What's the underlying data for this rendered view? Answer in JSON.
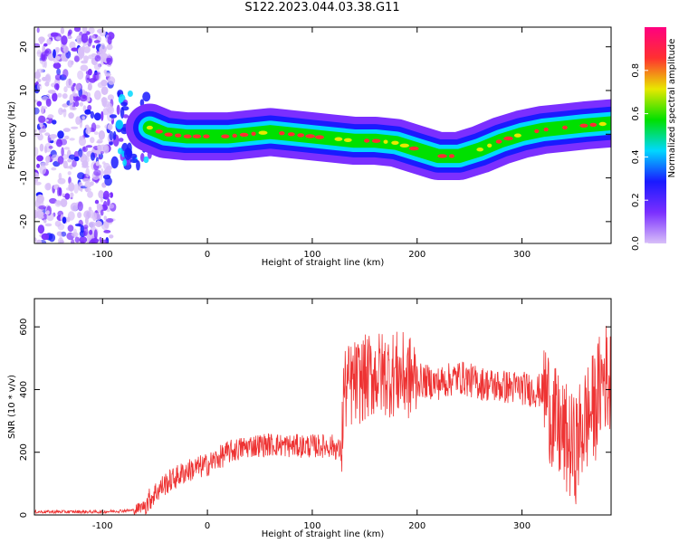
{
  "figure": {
    "title": "S122.2023.044.03.38.G11"
  },
  "chart_data": [
    {
      "type": "heatmap",
      "id": "spectrogram",
      "xlabel": "Height of straight line (km)",
      "ylabel": "Frequency (Hz)",
      "xlim": [
        -165,
        385
      ],
      "ylim": [
        -25,
        24.5
      ],
      "xticks": [
        -100,
        0,
        100,
        200,
        300
      ],
      "yticks": [
        -20,
        -10,
        0,
        10,
        20
      ],
      "grid": false,
      "colormap": [
        "#d8bff8",
        "#7b2fff",
        "#1a1aff",
        "#00d8ff",
        "#00e000",
        "#e8e800",
        "#ff3030",
        "#ff0080"
      ],
      "colorbar": {
        "label": "Normalized spectral amplitude",
        "range": [
          0,
          1
        ],
        "ticks": [
          "0.0",
          "0.2",
          "0.4",
          "0.6",
          "0.8"
        ]
      },
      "ridge": {
        "x": [
          -55,
          -40,
          -20,
          0,
          20,
          40,
          60,
          80,
          100,
          120,
          140,
          160,
          180,
          200,
          220,
          240,
          260,
          280,
          300,
          320,
          340,
          360,
          385
        ],
        "freq_hz": [
          1.5,
          0,
          -0.5,
          -0.5,
          -0.5,
          0,
          0.5,
          0,
          -0.5,
          -1,
          -1.5,
          -1.5,
          -2,
          -3.5,
          -5,
          -5,
          -3.5,
          -1.5,
          0,
          1,
          1.5,
          2,
          2.5
        ]
      },
      "noise_region": {
        "x_range": [
          -165,
          -90
        ],
        "freq_range": [
          -25,
          24.5
        ]
      }
    },
    {
      "type": "line",
      "id": "snr",
      "xlabel": "Height of straight line (km)",
      "ylabel": "SNR (10 * v/v)",
      "xlim": [
        -165,
        385
      ],
      "ylim": [
        0,
        690
      ],
      "xticks": [
        -100,
        0,
        100,
        200,
        300
      ],
      "yticks": [
        0,
        200,
        400,
        600
      ],
      "grid": false,
      "series": [
        {
          "color": "#ee3333",
          "x": [
            -165,
            -100,
            -70,
            -60,
            -50,
            -40,
            -30,
            -20,
            -10,
            0,
            20,
            40,
            60,
            80,
            100,
            120,
            128,
            130,
            140,
            160,
            180,
            200,
            220,
            240,
            260,
            280,
            300,
            315,
            322,
            330,
            340,
            350,
            360,
            370,
            378,
            385
          ],
          "y": [
            10,
            10,
            15,
            30,
            70,
            100,
            120,
            140,
            150,
            160,
            200,
            220,
            225,
            220,
            220,
            220,
            200,
            400,
            420,
            450,
            450,
            430,
            420,
            440,
            420,
            410,
            405,
            395,
            400,
            300,
            250,
            200,
            300,
            350,
            450,
            420
          ]
        }
      ]
    }
  ]
}
